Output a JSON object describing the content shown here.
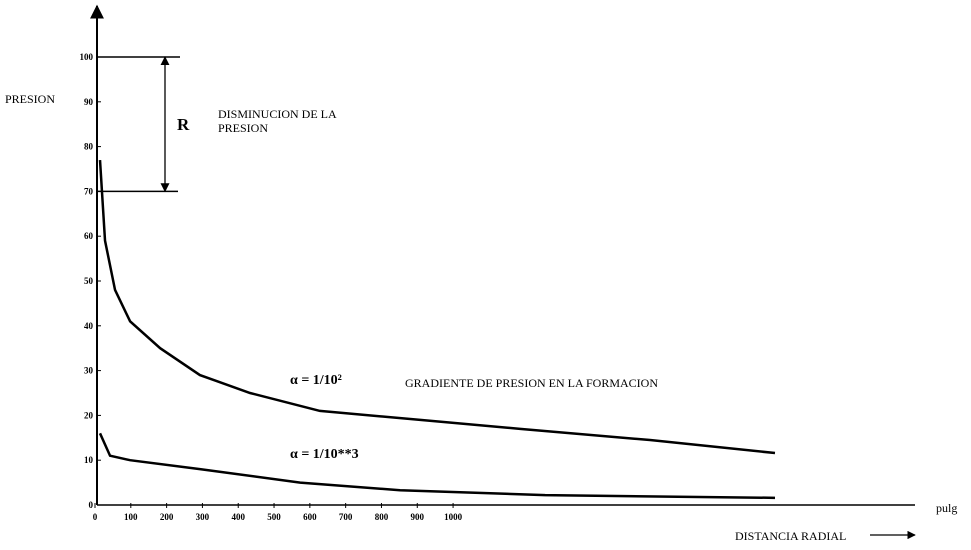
{
  "chart_data": {
    "type": "line",
    "y_axis_label": "PRESION",
    "x_axis_label": "DISTANCIA RADIAL",
    "x_unit": "pulg",
    "bracket_label": "R",
    "bracket_text": [
      "DISMINUCION DE LA",
      "PRESION"
    ],
    "annotation": "GRADIENTE DE PRESION EN LA FORMACION",
    "xlim": [
      0,
      2290
    ],
    "ylim": [
      0,
      100
    ],
    "xticks": [
      0,
      100,
      200,
      300,
      400,
      500,
      600,
      700,
      800,
      900,
      1000
    ],
    "yticks": [
      0,
      10,
      20,
      30,
      40,
      50,
      60,
      70,
      80,
      90,
      100
    ],
    "series": [
      {
        "name": "α = 1/10²",
        "color": "#000000",
        "x": [
          14,
          28,
          56,
          98,
          182,
          293,
          433,
          628,
          908,
          1187,
          1550,
          1899
        ],
        "values": [
          77,
          59,
          48,
          41,
          35,
          29,
          25,
          21,
          19,
          17,
          14.5,
          11.6
        ]
      },
      {
        "name": "α = 1/10**3",
        "color": "#000000",
        "x": [
          14,
          42,
          98,
          293,
          573,
          852,
          1257,
          1899
        ],
        "values": [
          16,
          11,
          10,
          8,
          5,
          3.3,
          2.2,
          1.6
        ]
      }
    ]
  }
}
